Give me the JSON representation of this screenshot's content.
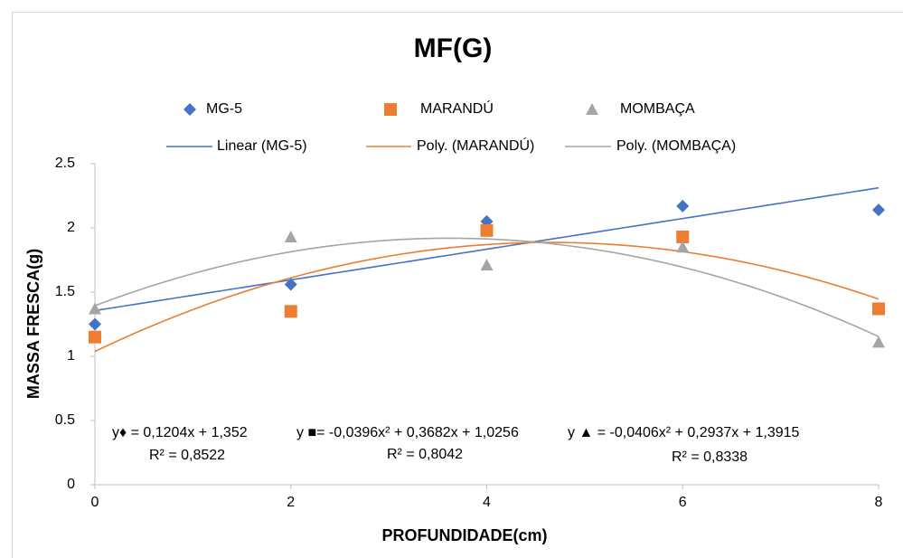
{
  "chart_data": {
    "type": "scatter",
    "title": "MF(G)",
    "x_label": "PROFUNDIDADE(cm)",
    "y_label": "MASSA FRESCA(g)",
    "x": [
      0,
      2,
      4,
      6,
      8
    ],
    "series": [
      {
        "name": "MG-5",
        "color": "#4472c4",
        "marker": "diamond",
        "values": [
          1.25,
          1.56,
          2.05,
          2.17,
          2.14
        ]
      },
      {
        "name": "MARANDÚ",
        "color": "#ed7d31",
        "marker": "square",
        "values": [
          1.15,
          1.35,
          1.98,
          1.93,
          1.37
        ]
      },
      {
        "name": "MOMBAÇA",
        "color": "#a5a5a5",
        "marker": "triangle",
        "values": [
          1.37,
          1.93,
          1.71,
          1.85,
          1.11
        ]
      }
    ],
    "trendlines": [
      {
        "name": "Linear (MG-5)",
        "order": 1
      },
      {
        "name": "Poly. (MARANDÚ)",
        "order": 2
      },
      {
        "name": "Poly. (MOMBAÇA)",
        "order": 2
      }
    ],
    "annotations": [
      "y♦ = 0,1204x + 1,352",
      "R² = 0,8522",
      "y ■= -0,0396x² + 0,3682x + 1,0256",
      "R² = 0,8042",
      "y ▲ = -0,0406x² + 0,2937x + 1,3915",
      "R² = 0,8338"
    ],
    "xlim": [
      0,
      8
    ],
    "xticks": [
      0,
      2,
      4,
      6,
      8
    ],
    "ylim": [
      0,
      2.5
    ],
    "yticks": [
      0,
      0.5,
      1,
      1.5,
      2,
      2.5
    ]
  }
}
